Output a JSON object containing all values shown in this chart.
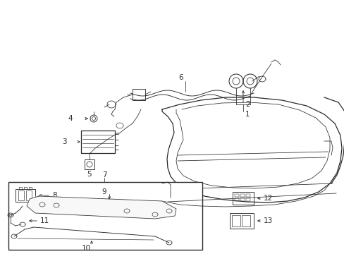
{
  "bg_color": "#ffffff",
  "line_color": "#2a2a2a",
  "fig_width": 4.89,
  "fig_height": 3.6,
  "dpi": 100,
  "label_fontsize": 7.5,
  "lw_main": 0.9,
  "lw_thin": 0.55
}
